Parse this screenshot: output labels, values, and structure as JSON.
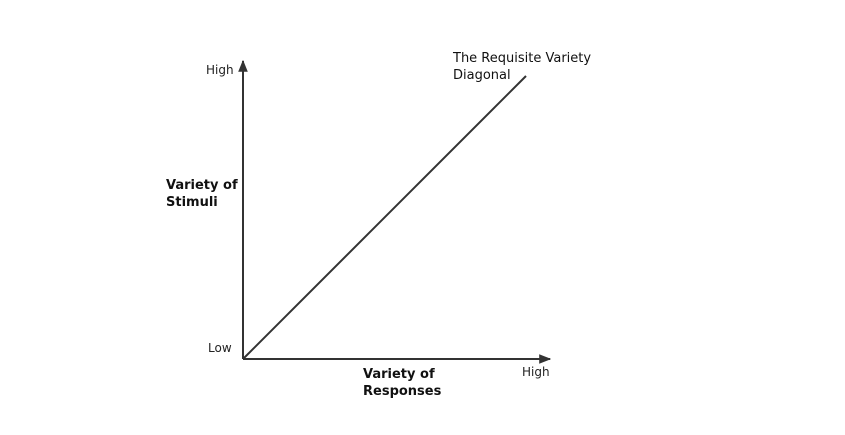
{
  "y_axis": {
    "high_label": "High",
    "low_label": "Low",
    "title": "Variety of Stimuli"
  },
  "x_axis": {
    "high_label": "High",
    "title": "Variety of Responses"
  },
  "diagonal": {
    "label": "The Requisite Variety Diagonal"
  }
}
